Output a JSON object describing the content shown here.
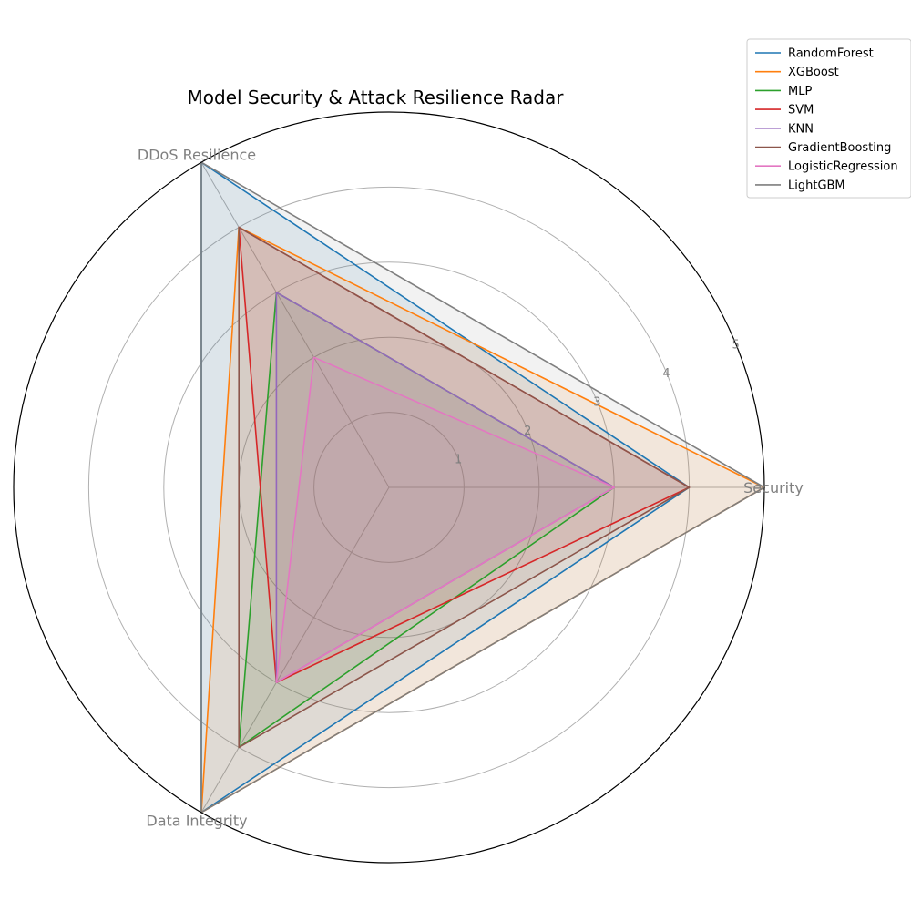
{
  "chart_data": {
    "type": "radar",
    "title": "Model Security & Attack Resilience Radar",
    "axes": [
      "Security",
      "DDoS Resilience",
      "Data Integrity"
    ],
    "rlim": [
      0,
      5
    ],
    "rticks": [
      "1",
      "2",
      "3",
      "4",
      "5"
    ],
    "legend_position": "top-right",
    "grid": true,
    "series": [
      {
        "name": "RandomForest",
        "color": "#1f77b4",
        "values": [
          4,
          5,
          5
        ]
      },
      {
        "name": "XGBoost",
        "color": "#ff7f0e",
        "values": [
          5,
          4,
          5
        ]
      },
      {
        "name": "MLP",
        "color": "#2ca02c",
        "values": [
          3,
          3,
          4
        ]
      },
      {
        "name": "SVM",
        "color": "#d62728",
        "values": [
          4,
          4,
          3
        ]
      },
      {
        "name": "KNN",
        "color": "#9467bd",
        "values": [
          3,
          3,
          3
        ]
      },
      {
        "name": "GradientBoosting",
        "color": "#8c564b",
        "values": [
          4,
          4,
          4
        ]
      },
      {
        "name": "LogisticRegression",
        "color": "#e377c2",
        "values": [
          3,
          2,
          3
        ]
      },
      {
        "name": "LightGBM",
        "color": "#7f7f7f",
        "values": [
          5,
          5,
          5
        ]
      }
    ]
  }
}
